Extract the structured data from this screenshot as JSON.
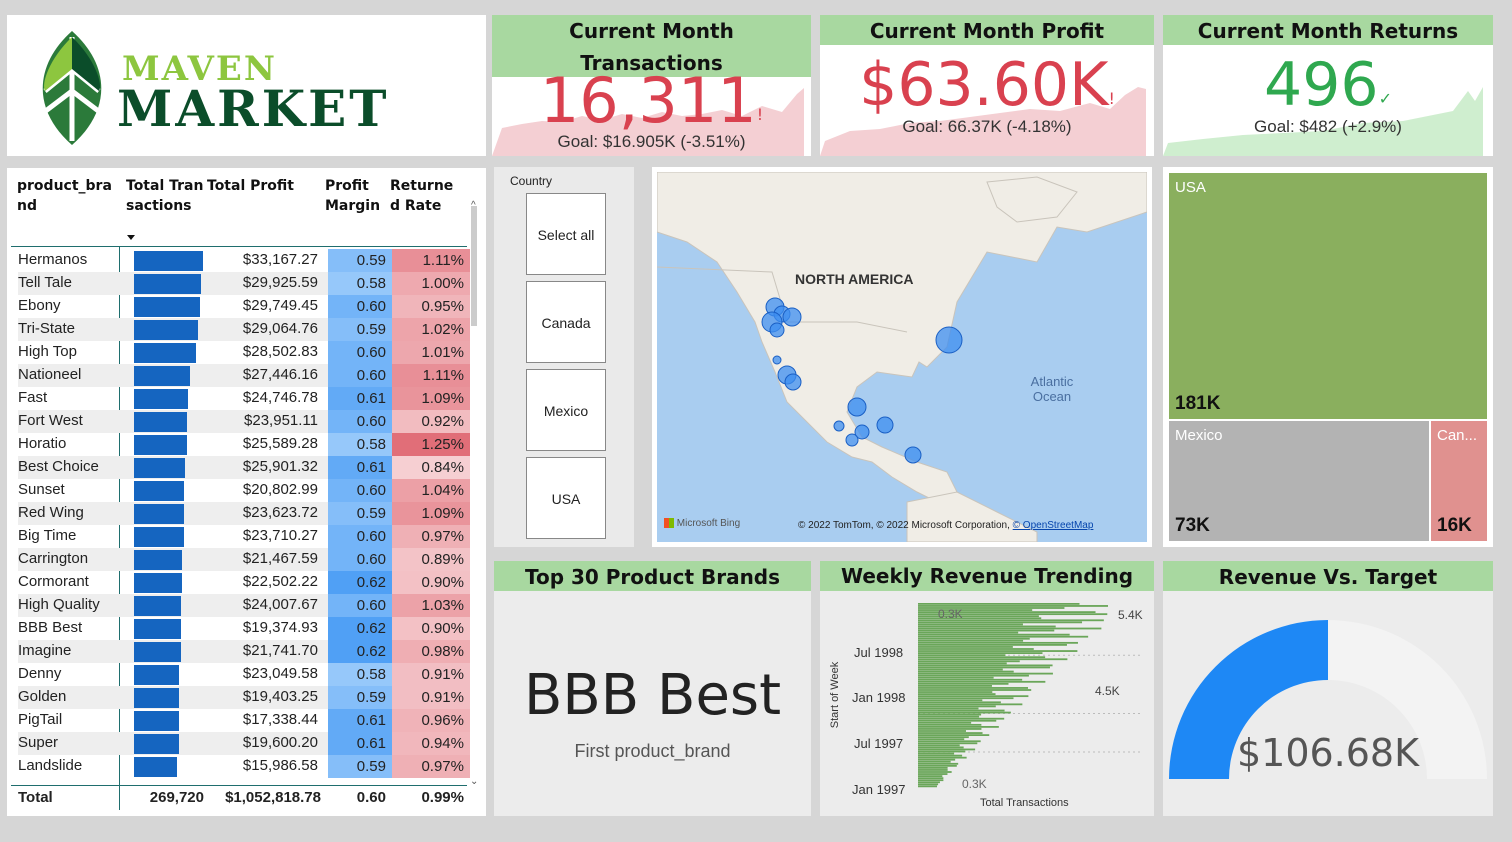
{
  "logo": {
    "line1": "MAVEN",
    "line2": "MARKET"
  },
  "kpis": {
    "transactions": {
      "title": "Current Month Transactions",
      "value": "16,311",
      "alert": "!",
      "goal": "Goal: $16.905K (-3.51%)"
    },
    "profit": {
      "title": "Current Month Profit",
      "value": "$63.60K",
      "alert": "!",
      "goal": "Goal: 66.37K (-4.18%)"
    },
    "returns": {
      "title": "Current Month Returns",
      "value": "496",
      "alert": "✓",
      "goal": "Goal: $482 (+2.9%)"
    }
  },
  "colors": {
    "header_green": "#a8d8a0",
    "bar_blue": "#1565c0",
    "neg_red": "#d9414f",
    "pos_green": "#2fa84f",
    "treemap_usa": "#8aaf5e",
    "treemap_mexico": "#b3b3b3",
    "treemap_canada": "#e0918f",
    "gauge_blue": "#1e88f5"
  },
  "table": {
    "headers": {
      "brand": "product_brand",
      "transactions": "Total Transactions",
      "profit": "Total Profit",
      "margin": "Profit Margin",
      "returns": "Returned Rate"
    },
    "sort_icon": "sort-desc-icon",
    "rows": [
      {
        "brand": "Hermanos",
        "tx": 1.0,
        "profit": "$33,167.27",
        "margin": "0.59",
        "rate": "1.11%"
      },
      {
        "brand": "Tell Tale",
        "tx": 0.97,
        "profit": "$29,925.59",
        "margin": "0.58",
        "rate": "1.00%"
      },
      {
        "brand": "Ebony",
        "tx": 0.96,
        "profit": "$29,749.45",
        "margin": "0.60",
        "rate": "0.95%"
      },
      {
        "brand": "Tri-State",
        "tx": 0.93,
        "profit": "$29,064.76",
        "margin": "0.59",
        "rate": "1.02%"
      },
      {
        "brand": "High Top",
        "tx": 0.9,
        "profit": "$28,502.83",
        "margin": "0.60",
        "rate": "1.01%"
      },
      {
        "brand": "Nationeel",
        "tx": 0.81,
        "profit": "$27,446.16",
        "margin": "0.60",
        "rate": "1.11%"
      },
      {
        "brand": "Fast",
        "tx": 0.78,
        "profit": "$24,746.78",
        "margin": "0.61",
        "rate": "1.09%"
      },
      {
        "brand": "Fort West",
        "tx": 0.77,
        "profit": "$23,951.11",
        "margin": "0.60",
        "rate": "0.92%"
      },
      {
        "brand": "Horatio",
        "tx": 0.77,
        "profit": "$25,589.28",
        "margin": "0.58",
        "rate": "1.25%"
      },
      {
        "brand": "Best Choice",
        "tx": 0.74,
        "profit": "$25,901.32",
        "margin": "0.61",
        "rate": "0.84%"
      },
      {
        "brand": "Sunset",
        "tx": 0.73,
        "profit": "$20,802.99",
        "margin": "0.60",
        "rate": "1.04%"
      },
      {
        "brand": "Red Wing",
        "tx": 0.73,
        "profit": "$23,623.72",
        "margin": "0.59",
        "rate": "1.09%"
      },
      {
        "brand": "Big Time",
        "tx": 0.73,
        "profit": "$23,710.27",
        "margin": "0.60",
        "rate": "0.97%"
      },
      {
        "brand": "Carrington",
        "tx": 0.7,
        "profit": "$21,467.59",
        "margin": "0.60",
        "rate": "0.89%"
      },
      {
        "brand": "Cormorant",
        "tx": 0.69,
        "profit": "$22,502.22",
        "margin": "0.62",
        "rate": "0.90%"
      },
      {
        "brand": "High Quality",
        "tx": 0.68,
        "profit": "$24,007.67",
        "margin": "0.60",
        "rate": "1.03%"
      },
      {
        "brand": "BBB Best",
        "tx": 0.68,
        "profit": "$19,374.93",
        "margin": "0.62",
        "rate": "0.90%"
      },
      {
        "brand": "Imagine",
        "tx": 0.68,
        "profit": "$21,741.70",
        "margin": "0.62",
        "rate": "0.98%"
      },
      {
        "brand": "Denny",
        "tx": 0.65,
        "profit": "$23,049.58",
        "margin": "0.58",
        "rate": "0.91%"
      },
      {
        "brand": "Golden",
        "tx": 0.65,
        "profit": "$19,403.25",
        "margin": "0.59",
        "rate": "0.91%"
      },
      {
        "brand": "PigTail",
        "tx": 0.65,
        "profit": "$17,338.44",
        "margin": "0.61",
        "rate": "0.96%"
      },
      {
        "brand": "Super",
        "tx": 0.65,
        "profit": "$19,600.20",
        "margin": "0.61",
        "rate": "0.94%"
      },
      {
        "brand": "Landslide",
        "tx": 0.62,
        "profit": "$15,986.58",
        "margin": "0.59",
        "rate": "0.97%"
      }
    ],
    "total": {
      "label": "Total",
      "tx": "269,720",
      "profit": "$1,052,818.78",
      "margin": "0.60",
      "rate": "0.99%"
    }
  },
  "slicer": {
    "title": "Country",
    "options": [
      "Select all",
      "Canada",
      "Mexico",
      "USA"
    ]
  },
  "map": {
    "region_label": "NORTH AMERICA",
    "ocean_label": "Atlantic Ocean",
    "bing": "Microsoft Bing",
    "attribution": "© 2022 TomTom, © 2022 Microsoft Corporation,",
    "osm": "© OpenStreetMap"
  },
  "treemap": {
    "usa": {
      "label": "USA",
      "value": "181K"
    },
    "mexico": {
      "label": "Mexico",
      "value": "73K"
    },
    "canada": {
      "label": "Can...",
      "value": "16K"
    }
  },
  "top_brands": {
    "title": "Top 30 Product Brands",
    "value": "BBB Best",
    "caption": "First product_brand"
  },
  "weekly": {
    "title": "Weekly Revenue Trending",
    "ylabel": "Start of Week",
    "xlabel": "Total Transactions",
    "ticks": [
      "Jul 1998",
      "Jan 1998",
      "Jul 1997",
      "Jan 1997"
    ],
    "annotations": [
      "0.3K",
      "5.4K",
      "4.5K",
      "0.3K"
    ]
  },
  "gauge": {
    "title": "Revenue Vs. Target",
    "value": "$106.68K",
    "fraction": 0.5
  }
}
